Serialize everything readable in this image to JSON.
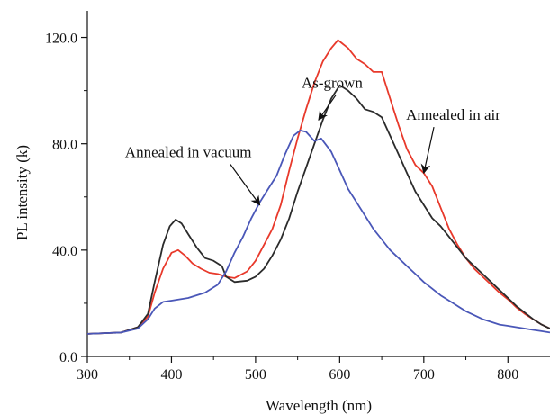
{
  "chart_data": {
    "type": "line",
    "title": "",
    "xlabel": "Wavelength (nm)",
    "ylabel": "PL intensity (k)",
    "xlim": [
      300,
      850
    ],
    "ylim": [
      0,
      130
    ],
    "xticks": [
      300,
      400,
      500,
      600,
      700,
      800
    ],
    "xtick_labels": [
      "300",
      "400",
      "500",
      "600",
      "700",
      "800"
    ],
    "yticks": [
      0,
      40,
      80,
      120
    ],
    "ytick_labels": [
      "0.0",
      "40.0",
      "80.0",
      "120.0"
    ],
    "grid": false,
    "legend": "none",
    "series": [
      {
        "color": "#e8392b",
        "points": [
          [
            300,
            8.5
          ],
          [
            340,
            9
          ],
          [
            360,
            11
          ],
          [
            372,
            15
          ],
          [
            380,
            24
          ],
          [
            390,
            33
          ],
          [
            400,
            39
          ],
          [
            408,
            40
          ],
          [
            416,
            38
          ],
          [
            425,
            35
          ],
          [
            435,
            33
          ],
          [
            445,
            31.5
          ],
          [
            455,
            31
          ],
          [
            465,
            30
          ],
          [
            475,
            29.5
          ],
          [
            490,
            32
          ],
          [
            500,
            36
          ],
          [
            510,
            42
          ],
          [
            520,
            48
          ],
          [
            530,
            57
          ],
          [
            540,
            70
          ],
          [
            550,
            82
          ],
          [
            560,
            93
          ],
          [
            570,
            103
          ],
          [
            580,
            111
          ],
          [
            590,
            116
          ],
          [
            598,
            119
          ],
          [
            610,
            116
          ],
          [
            620,
            112
          ],
          [
            630,
            110
          ],
          [
            640,
            107
          ],
          [
            650,
            107
          ],
          [
            660,
            97
          ],
          [
            670,
            87
          ],
          [
            680,
            78
          ],
          [
            690,
            72
          ],
          [
            700,
            69
          ],
          [
            710,
            64
          ],
          [
            720,
            56
          ],
          [
            730,
            48
          ],
          [
            740,
            42
          ],
          [
            750,
            37
          ],
          [
            760,
            33
          ],
          [
            770,
            30
          ],
          [
            780,
            27
          ],
          [
            790,
            24
          ],
          [
            800,
            21.5
          ],
          [
            810,
            18.5
          ],
          [
            820,
            16
          ],
          [
            830,
            14
          ],
          [
            840,
            12
          ],
          [
            850,
            10.5
          ]
        ]
      },
      {
        "color": "#2b2b2b",
        "points": [
          [
            300,
            8.5
          ],
          [
            340,
            9
          ],
          [
            360,
            11
          ],
          [
            372,
            16
          ],
          [
            380,
            28
          ],
          [
            390,
            42
          ],
          [
            398,
            49
          ],
          [
            405,
            51.5
          ],
          [
            412,
            50
          ],
          [
            420,
            46
          ],
          [
            430,
            41
          ],
          [
            440,
            37
          ],
          [
            450,
            36
          ],
          [
            460,
            34
          ],
          [
            465,
            30
          ],
          [
            475,
            28
          ],
          [
            490,
            28.5
          ],
          [
            500,
            30
          ],
          [
            510,
            33
          ],
          [
            520,
            38
          ],
          [
            530,
            44
          ],
          [
            540,
            52
          ],
          [
            550,
            62
          ],
          [
            560,
            71
          ],
          [
            570,
            80
          ],
          [
            580,
            89
          ],
          [
            590,
            97
          ],
          [
            600,
            102
          ],
          [
            610,
            100
          ],
          [
            620,
            97
          ],
          [
            630,
            93
          ],
          [
            640,
            92
          ],
          [
            650,
            90
          ],
          [
            660,
            83
          ],
          [
            670,
            76
          ],
          [
            680,
            69
          ],
          [
            690,
            62
          ],
          [
            700,
            57
          ],
          [
            710,
            52
          ],
          [
            720,
            49
          ],
          [
            730,
            45
          ],
          [
            740,
            41
          ],
          [
            750,
            37
          ],
          [
            760,
            34
          ],
          [
            770,
            31
          ],
          [
            780,
            28
          ],
          [
            790,
            25
          ],
          [
            800,
            22
          ],
          [
            810,
            19
          ],
          [
            820,
            16.5
          ],
          [
            830,
            14
          ],
          [
            840,
            12
          ],
          [
            850,
            10.5
          ]
        ]
      },
      {
        "color": "#4a57b8",
        "points": [
          [
            300,
            8.5
          ],
          [
            340,
            9
          ],
          [
            360,
            10.5
          ],
          [
            372,
            14
          ],
          [
            380,
            18
          ],
          [
            390,
            20.5
          ],
          [
            400,
            21
          ],
          [
            420,
            22
          ],
          [
            440,
            24
          ],
          [
            455,
            27
          ],
          [
            465,
            32
          ],
          [
            475,
            39
          ],
          [
            485,
            45
          ],
          [
            495,
            52
          ],
          [
            505,
            58
          ],
          [
            515,
            63
          ],
          [
            525,
            68
          ],
          [
            535,
            76
          ],
          [
            545,
            83
          ],
          [
            553,
            85
          ],
          [
            560,
            84.5
          ],
          [
            570,
            81
          ],
          [
            578,
            82
          ],
          [
            590,
            77
          ],
          [
            600,
            70
          ],
          [
            610,
            63
          ],
          [
            620,
            58
          ],
          [
            630,
            53
          ],
          [
            640,
            48
          ],
          [
            650,
            44
          ],
          [
            660,
            40
          ],
          [
            670,
            37
          ],
          [
            680,
            34
          ],
          [
            690,
            31
          ],
          [
            700,
            28
          ],
          [
            710,
            25.5
          ],
          [
            720,
            23
          ],
          [
            730,
            21
          ],
          [
            740,
            19
          ],
          [
            750,
            17
          ],
          [
            760,
            15.5
          ],
          [
            770,
            14
          ],
          [
            780,
            13
          ],
          [
            790,
            12
          ],
          [
            800,
            11.5
          ],
          [
            810,
            11
          ],
          [
            820,
            10.5
          ],
          [
            830,
            10
          ],
          [
            840,
            9.5
          ],
          [
            850,
            9
          ]
        ]
      }
    ],
    "annotations": [
      {
        "text": "As-grown",
        "x": 591,
        "y": 101,
        "arrow_to": [
          575,
          89
        ]
      },
      {
        "text": "Annealed in air",
        "x": 735,
        "y": 89,
        "arrow_to": [
          700,
          69
        ]
      },
      {
        "text": "Annealed in vacuum",
        "x": 420,
        "y": 75,
        "arrow_to": [
          505,
          57
        ]
      }
    ]
  }
}
